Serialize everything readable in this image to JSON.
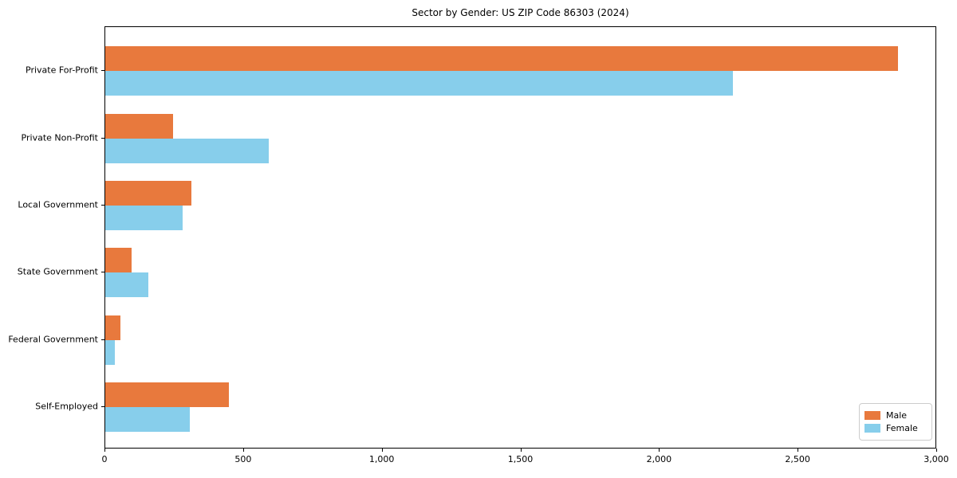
{
  "chart_data": {
    "type": "bar",
    "orientation": "horizontal",
    "title": "Sector by Gender: US ZIP Code 86303 (2024)",
    "categories": [
      "Private For-Profit",
      "Private Non-Profit",
      "Local Government",
      "State Government",
      "Federal Government",
      "Self-Employed"
    ],
    "series": [
      {
        "name": "Male",
        "color": "#e8793d",
        "values": [
          2860,
          245,
          310,
          95,
          55,
          445
        ]
      },
      {
        "name": "Female",
        "color": "#87ceeb",
        "values": [
          2265,
          590,
          280,
          155,
          35,
          305
        ]
      }
    ],
    "xlim": [
      0,
      3000
    ],
    "x_ticks": [
      0,
      500,
      1000,
      1500,
      2000,
      2500,
      3000
    ],
    "x_tick_labels": [
      "0",
      "500",
      "1,000",
      "1,500",
      "2,000",
      "2,500",
      "3,000"
    ],
    "ylabel": "",
    "xlabel": "",
    "grid": false,
    "legend": {
      "position": "lower right",
      "entries": [
        "Male",
        "Female"
      ]
    }
  }
}
